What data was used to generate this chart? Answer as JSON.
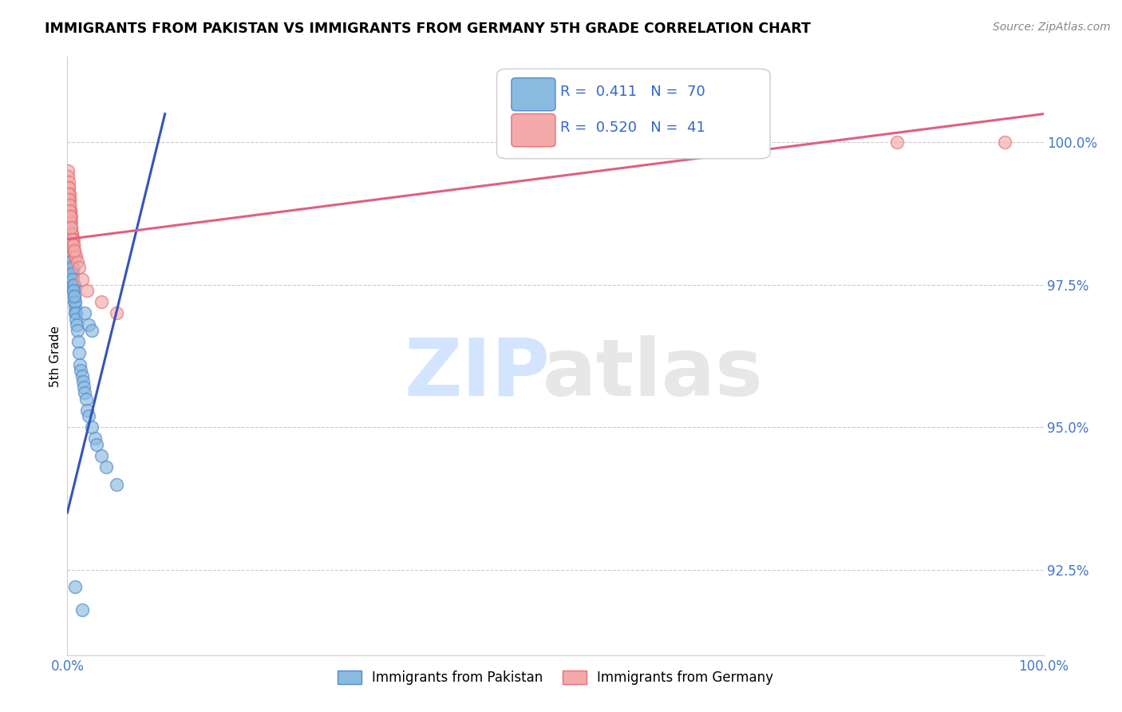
{
  "title": "IMMIGRANTS FROM PAKISTAN VS IMMIGRANTS FROM GERMANY 5TH GRADE CORRELATION CHART",
  "source": "Source: ZipAtlas.com",
  "ylabel": "5th Grade",
  "xlim": [
    0.0,
    100.0
  ],
  "ylim": [
    91.0,
    101.5
  ],
  "yticks": [
    92.5,
    95.0,
    97.5,
    100.0
  ],
  "ytick_labels": [
    "92.5%",
    "95.0%",
    "97.5%",
    "100.0%"
  ],
  "legend_blue_label": "Immigrants from Pakistan",
  "legend_pink_label": "Immigrants from Germany",
  "r_blue": "0.411",
  "n_blue": "70",
  "r_pink": "0.520",
  "n_pink": "41",
  "blue_color": "#89BBE0",
  "pink_color": "#F4AAAA",
  "blue_edge_color": "#5588CC",
  "pink_edge_color": "#E87070",
  "blue_line_color": "#3355BB",
  "pink_line_color": "#E06080",
  "blue_line": [
    [
      0.0,
      93.5
    ],
    [
      10.0,
      100.5
    ]
  ],
  "pink_line": [
    [
      0.0,
      98.3
    ],
    [
      100.0,
      100.5
    ]
  ],
  "blue_scatter_x": [
    0.05,
    0.08,
    0.1,
    0.12,
    0.15,
    0.18,
    0.2,
    0.22,
    0.25,
    0.28,
    0.3,
    0.32,
    0.35,
    0.38,
    0.4,
    0.42,
    0.45,
    0.48,
    0.5,
    0.52,
    0.55,
    0.58,
    0.6,
    0.62,
    0.65,
    0.68,
    0.7,
    0.72,
    0.75,
    0.78,
    0.8,
    0.85,
    0.9,
    0.95,
    1.0,
    1.1,
    1.2,
    1.3,
    1.4,
    1.5,
    1.6,
    1.7,
    1.8,
    1.9,
    2.0,
    2.2,
    2.5,
    2.8,
    3.0,
    3.5,
    4.0,
    5.0,
    0.1,
    0.15,
    0.2,
    0.25,
    0.3,
    0.35,
    0.4,
    0.45,
    0.5,
    0.55,
    0.6,
    0.65,
    0.7,
    1.8,
    2.2,
    2.5,
    1.5,
    0.8
  ],
  "blue_scatter_y": [
    97.8,
    97.9,
    98.1,
    98.3,
    98.5,
    98.6,
    98.7,
    98.8,
    98.8,
    98.7,
    98.6,
    98.5,
    98.4,
    98.3,
    98.2,
    98.1,
    98.0,
    97.9,
    98.0,
    97.8,
    97.7,
    97.6,
    97.8,
    97.5,
    97.4,
    97.3,
    97.5,
    97.2,
    97.1,
    97.0,
    97.2,
    97.0,
    96.9,
    96.8,
    96.7,
    96.5,
    96.3,
    96.1,
    96.0,
    95.9,
    95.8,
    95.7,
    95.6,
    95.5,
    95.3,
    95.2,
    95.0,
    94.8,
    94.7,
    94.5,
    94.3,
    94.0,
    98.5,
    98.4,
    98.3,
    98.2,
    98.1,
    98.0,
    97.9,
    97.8,
    97.7,
    97.6,
    97.5,
    97.4,
    97.3,
    97.0,
    96.8,
    96.7,
    91.8,
    92.2
  ],
  "pink_scatter_x": [
    0.05,
    0.08,
    0.1,
    0.12,
    0.15,
    0.18,
    0.2,
    0.22,
    0.25,
    0.28,
    0.3,
    0.32,
    0.35,
    0.38,
    0.4,
    0.45,
    0.5,
    0.55,
    0.6,
    0.65,
    0.7,
    0.8,
    0.9,
    1.0,
    1.2,
    1.5,
    2.0,
    3.5,
    5.0,
    0.1,
    0.15,
    0.2,
    0.25,
    0.3,
    0.4,
    0.5,
    0.6,
    0.7,
    70.0,
    85.0,
    96.0
  ],
  "pink_scatter_y": [
    99.5,
    99.4,
    99.3,
    99.2,
    99.2,
    99.1,
    99.0,
    99.0,
    98.9,
    98.8,
    98.8,
    98.7,
    98.7,
    98.6,
    98.5,
    98.4,
    98.4,
    98.3,
    98.3,
    98.2,
    98.1,
    98.0,
    98.0,
    97.9,
    97.8,
    97.6,
    97.4,
    97.2,
    97.0,
    99.1,
    99.0,
    98.9,
    98.8,
    98.7,
    98.5,
    98.3,
    98.2,
    98.1,
    100.0,
    100.0,
    100.0
  ]
}
